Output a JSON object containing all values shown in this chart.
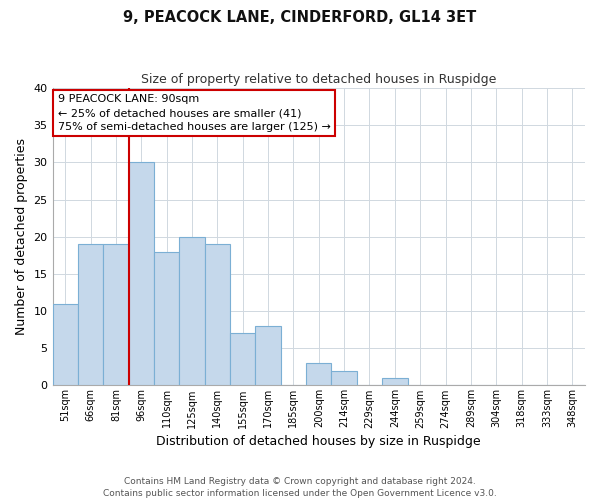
{
  "title": "9, PEACOCK LANE, CINDERFORD, GL14 3ET",
  "subtitle": "Size of property relative to detached houses in Ruspidge",
  "xlabel": "Distribution of detached houses by size in Ruspidge",
  "ylabel": "Number of detached properties",
  "bar_labels": [
    "51sqm",
    "66sqm",
    "81sqm",
    "96sqm",
    "110sqm",
    "125sqm",
    "140sqm",
    "155sqm",
    "170sqm",
    "185sqm",
    "200sqm",
    "214sqm",
    "229sqm",
    "244sqm",
    "259sqm",
    "274sqm",
    "289sqm",
    "304sqm",
    "318sqm",
    "333sqm",
    "348sqm"
  ],
  "bar_heights": [
    11,
    19,
    19,
    30,
    18,
    20,
    19,
    7,
    8,
    0,
    3,
    2,
    0,
    1,
    0,
    0,
    0,
    0,
    0,
    0,
    0
  ],
  "bar_color": "#c5d8eb",
  "bar_edge_color": "#7bafd4",
  "vline_x": 3,
  "vline_color": "#cc0000",
  "annotation_text_line1": "9 PEACOCK LANE: 90sqm",
  "annotation_text_line2": "← 25% of detached houses are smaller (41)",
  "annotation_text_line3": "75% of semi-detached houses are larger (125) →",
  "annotation_box_facecolor": "#ffffff",
  "annotation_box_edgecolor": "#cc0000",
  "ylim": [
    0,
    40
  ],
  "yticks": [
    0,
    5,
    10,
    15,
    20,
    25,
    30,
    35,
    40
  ],
  "footer_line1": "Contains HM Land Registry data © Crown copyright and database right 2024.",
  "footer_line2": "Contains public sector information licensed under the Open Government Licence v3.0.",
  "background_color": "#ffffff",
  "grid_color": "#d0d8e0"
}
